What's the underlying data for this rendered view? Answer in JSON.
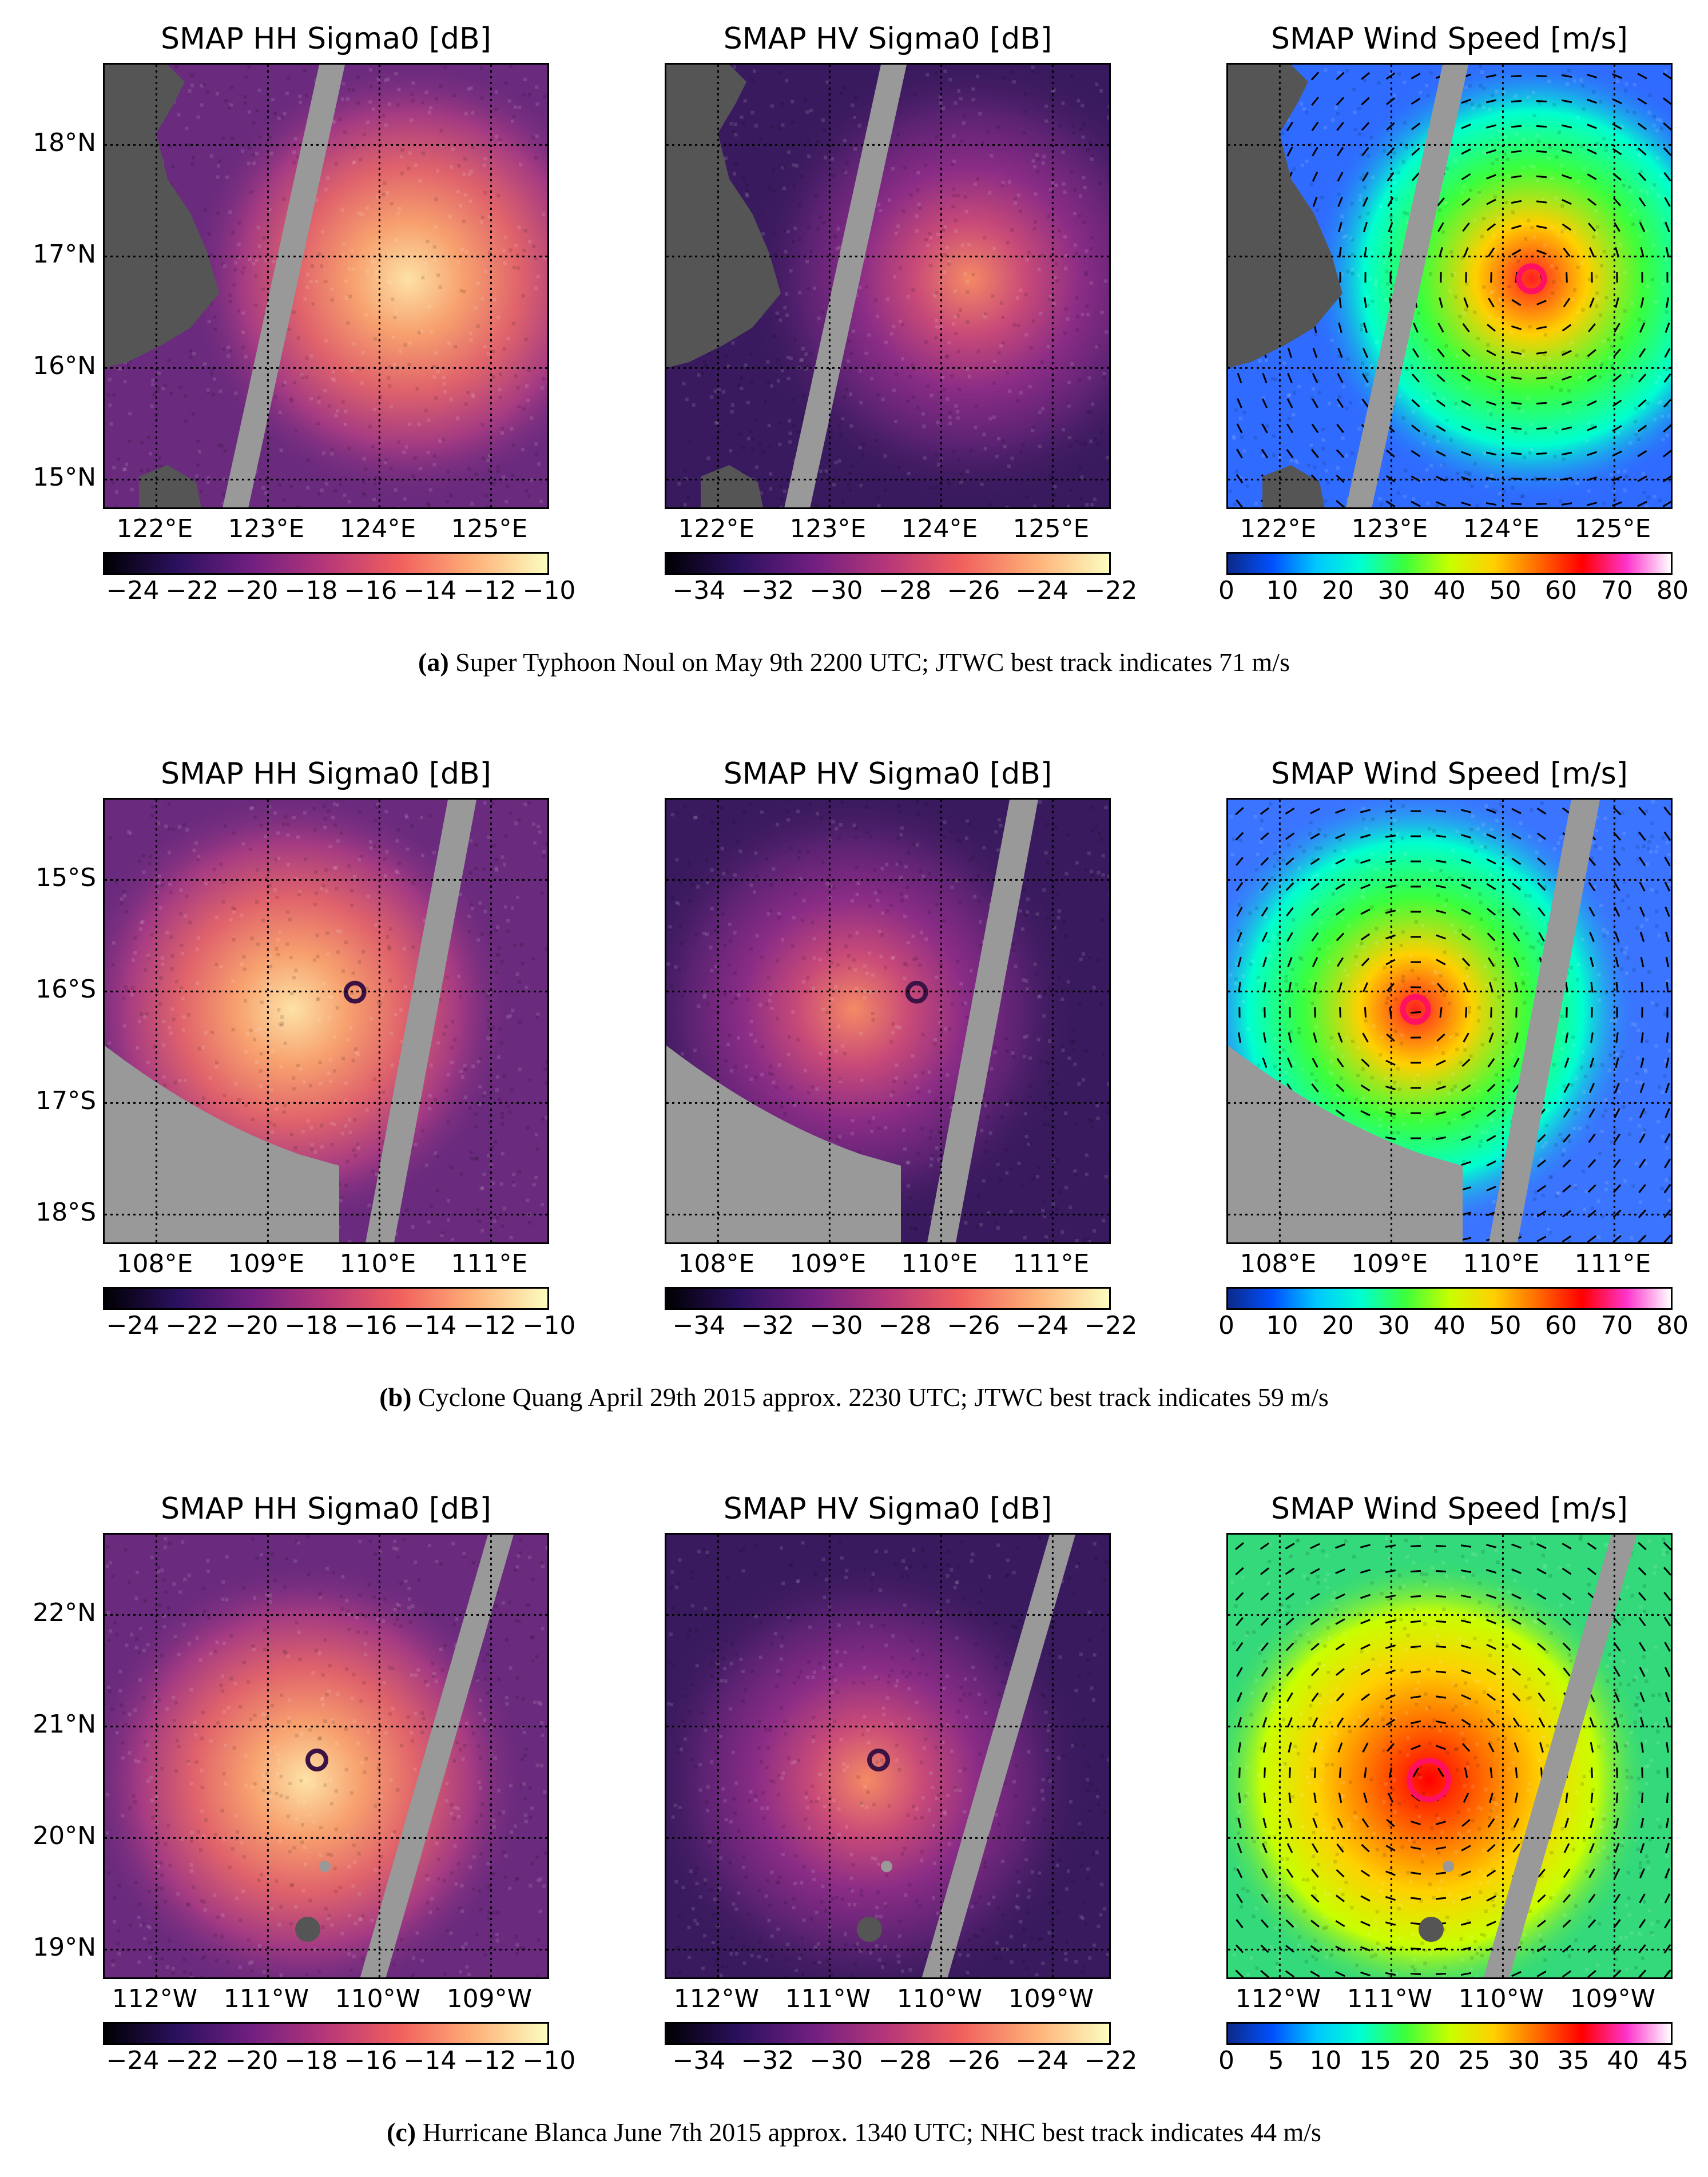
{
  "chart_data": [
    {
      "type": "heatmap",
      "storm": "Super Typhoon Noul",
      "caption_letter": "a",
      "caption_text": "Super Typhoon Noul on May 9th 2200 UTC; JTWC best track indicates 71 m/s",
      "lat_ticks": [
        "18°N",
        "17°N",
        "16°N",
        "15°N"
      ],
      "lon_ticks": [
        "122°E",
        "123°E",
        "124°E",
        "125°E"
      ],
      "panels": [
        {
          "title": "SMAP HH Sigma0 [dB]",
          "colormap": "magma",
          "colorbar_ticks": [
            "−24",
            "−22",
            "−20",
            "−18",
            "−16",
            "−14",
            "−12",
            "−10"
          ],
          "range": [
            -25,
            -10
          ]
        },
        {
          "title": "SMAP HV Sigma0 [dB]",
          "colormap": "magma",
          "colorbar_ticks": [
            "−34",
            "−32",
            "−30",
            "−28",
            "−26",
            "−24",
            "−22"
          ],
          "range": [
            -35,
            -22
          ]
        },
        {
          "title": "SMAP Wind Speed [m/s]",
          "colormap": "jet-like",
          "colorbar_ticks": [
            "0",
            "10",
            "20",
            "30",
            "40",
            "50",
            "60",
            "70",
            "80"
          ],
          "range": [
            0,
            80
          ]
        }
      ]
    },
    {
      "type": "heatmap",
      "storm": "Cyclone Quang",
      "caption_letter": "b",
      "caption_text": "Cyclone Quang April 29th 2015 approx. 2230 UTC; JTWC best track indicates 59 m/s",
      "lat_ticks": [
        "15°S",
        "16°S",
        "17°S",
        "18°S"
      ],
      "lon_ticks": [
        "108°E",
        "109°E",
        "110°E",
        "111°E"
      ],
      "panels": [
        {
          "title": "SMAP HH Sigma0 [dB]",
          "colormap": "magma",
          "colorbar_ticks": [
            "−24",
            "−22",
            "−20",
            "−18",
            "−16",
            "−14",
            "−12",
            "−10"
          ],
          "range": [
            -25,
            -10
          ]
        },
        {
          "title": "SMAP HV Sigma0 [dB]",
          "colormap": "magma",
          "colorbar_ticks": [
            "−34",
            "−32",
            "−30",
            "−28",
            "−26",
            "−24",
            "−22"
          ],
          "range": [
            -35,
            -22
          ]
        },
        {
          "title": "SMAP Wind Speed [m/s]",
          "colormap": "jet-like",
          "colorbar_ticks": [
            "0",
            "10",
            "20",
            "30",
            "40",
            "50",
            "60",
            "70",
            "80"
          ],
          "range": [
            0,
            80
          ]
        }
      ]
    },
    {
      "type": "heatmap",
      "storm": "Hurricane Blanca",
      "caption_letter": "c",
      "caption_text": "Hurricane Blanca June 7th 2015 approx. 1340 UTC; NHC best track indicates 44 m/s",
      "lat_ticks": [
        "22°N",
        "21°N",
        "20°N",
        "19°N"
      ],
      "lon_ticks": [
        "112°W",
        "111°W",
        "110°W",
        "109°W"
      ],
      "panels": [
        {
          "title": "SMAP HH Sigma0 [dB]",
          "colormap": "magma",
          "colorbar_ticks": [
            "−24",
            "−22",
            "−20",
            "−18",
            "−16",
            "−14",
            "−12",
            "−10"
          ],
          "range": [
            -25,
            -10
          ]
        },
        {
          "title": "SMAP HV Sigma0 [dB]",
          "colormap": "magma",
          "colorbar_ticks": [
            "−34",
            "−32",
            "−30",
            "−28",
            "−26",
            "−24",
            "−22"
          ],
          "range": [
            -35,
            -22
          ]
        },
        {
          "title": "SMAP Wind Speed [m/s]",
          "colormap": "jet-like",
          "colorbar_ticks": [
            "0",
            "5",
            "10",
            "15",
            "20",
            "25",
            "30",
            "35",
            "40",
            "45"
          ],
          "range": [
            0,
            45
          ]
        }
      ]
    }
  ],
  "colors": {
    "land": "#555555",
    "swath_gap": "#999999",
    "grid": "#000000"
  }
}
